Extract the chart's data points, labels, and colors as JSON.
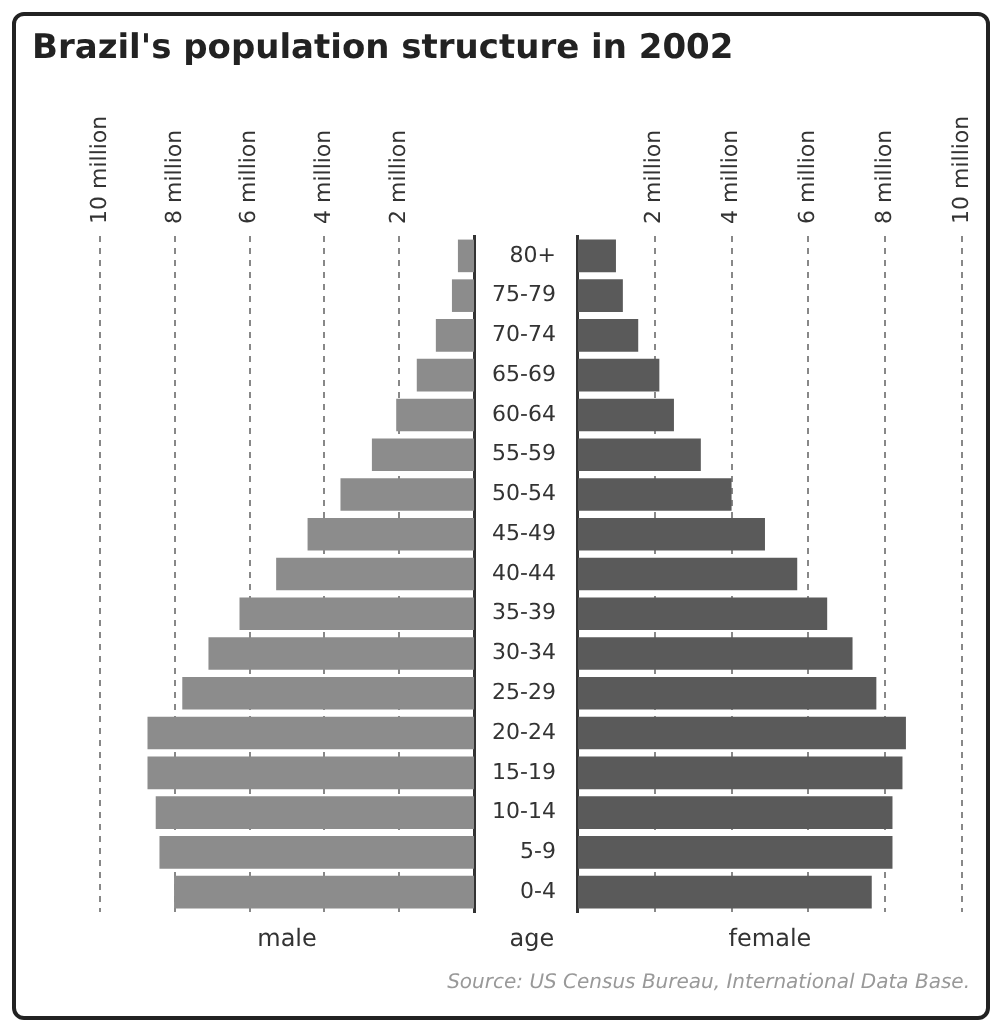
{
  "chart_data": [
    {
      "type": "bar",
      "orientation": "horizontal",
      "title": "Brazil's population structure in 2002",
      "xlabel": "male",
      "tick_labels": "x",
      "grid": "x",
      "categories": [
        null,
        null,
        null,
        null,
        null,
        null,
        null,
        null,
        null,
        null,
        null,
        null,
        null,
        null,
        null,
        null,
        null
      ],
      "series": [
        {
          "color": "#8c8c8c",
          "values": [
            0.43,
            0.59,
            1.02,
            1.53,
            2.08,
            2.73,
            3.57,
            4.45,
            5.29,
            6.27,
            7.1,
            7.8,
            8.73,
            8.73,
            8.51,
            8.41,
            8.02
          ]
        }
      ],
      "xlim": [
        10,
        0
      ],
      "xticks": [
        {
          "value": 2,
          "label": "2 million"
        },
        {
          "value": 4,
          "label": "4 million"
        },
        {
          "value": 6,
          "label": "6 million"
        },
        {
          "value": 8,
          "label": "8 million"
        },
        {
          "value": 10,
          "label": "10 million"
        }
      ]
    },
    {
      "type": "bar",
      "orientation": "horizontal",
      "xlabel": "female",
      "ylabel": "age",
      "grid": "x",
      "categories": [
        "80+",
        "75-79",
        "70-74",
        "65-69",
        "60-64",
        "55-59",
        "50-54",
        "45-49",
        "40-44",
        "35-39",
        "30-34",
        "25-29",
        "20-24",
        "15-19",
        "10-14",
        "5-9",
        "0-4"
      ],
      "series": [
        {
          "color": "#5a5a5a",
          "values": [
            0.99,
            1.17,
            1.57,
            2.12,
            2.5,
            3.2,
            4.0,
            4.87,
            5.71,
            6.49,
            7.15,
            7.77,
            8.54,
            8.45,
            8.19,
            8.19,
            7.65
          ]
        }
      ],
      "xlim": [
        0,
        10
      ],
      "xticks": [
        {
          "value": 2,
          "label": "2 million"
        },
        {
          "value": 4,
          "label": "4 million"
        },
        {
          "value": 6,
          "label": "6 million"
        },
        {
          "value": 8,
          "label": "8 million"
        },
        {
          "value": 10,
          "label": "10 million"
        }
      ],
      "annotations": [
        "Source: US Census Bureau, International Data Base."
      ]
    }
  ]
}
